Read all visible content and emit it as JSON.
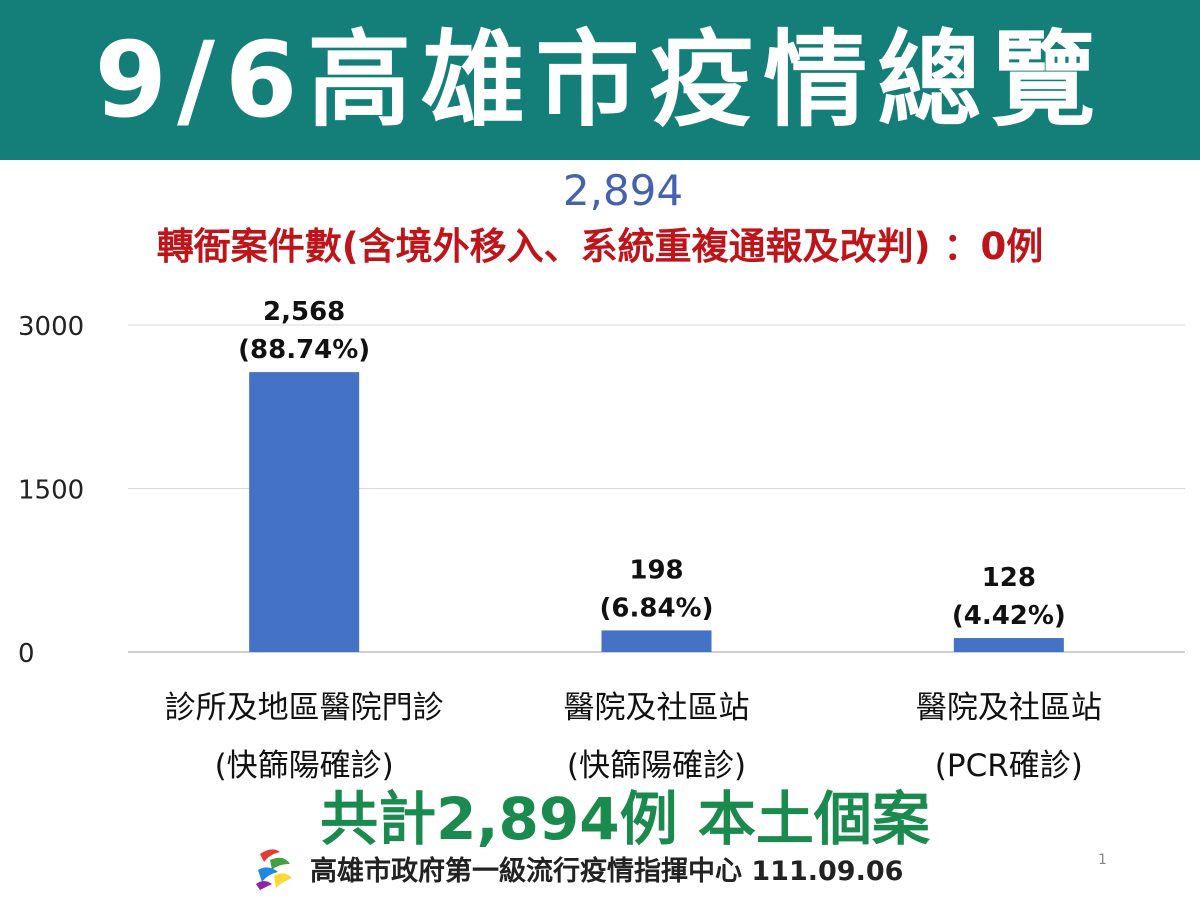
{
  "header": {
    "title": "9/6高雄市疫情總覽"
  },
  "summary_top": {
    "total": "2,894",
    "transfer_note": "轉衙案件數(含境外移入、系統重複通報及改判) ：0例"
  },
  "chart_data": {
    "type": "bar",
    "categories": [
      [
        "診所及地區醫院門診",
        "(快篩陽確診)"
      ],
      [
        "醫院及社區站",
        "(快篩陽確診)"
      ],
      [
        "醫院及社區站",
        "(PCR確診)"
      ]
    ],
    "values": [
      2568,
      198,
      128
    ],
    "value_labels": [
      "2,568",
      "198",
      "128"
    ],
    "percent_labels": [
      "(88.74%)",
      "(6.84%)",
      "(4.42%)"
    ],
    "yticks": [
      "0",
      "1500",
      "3000"
    ],
    "ylim": [
      0,
      3000
    ],
    "grid": true,
    "bar_color": "#4472c4"
  },
  "summary_bottom": "共計2,894例 本土個案",
  "footer": {
    "logo_icon": "kaohsiung-city-logo-icon",
    "text": "高雄市政府第一級流行疫情指揮中心 111.09.06"
  },
  "page_number": "1"
}
